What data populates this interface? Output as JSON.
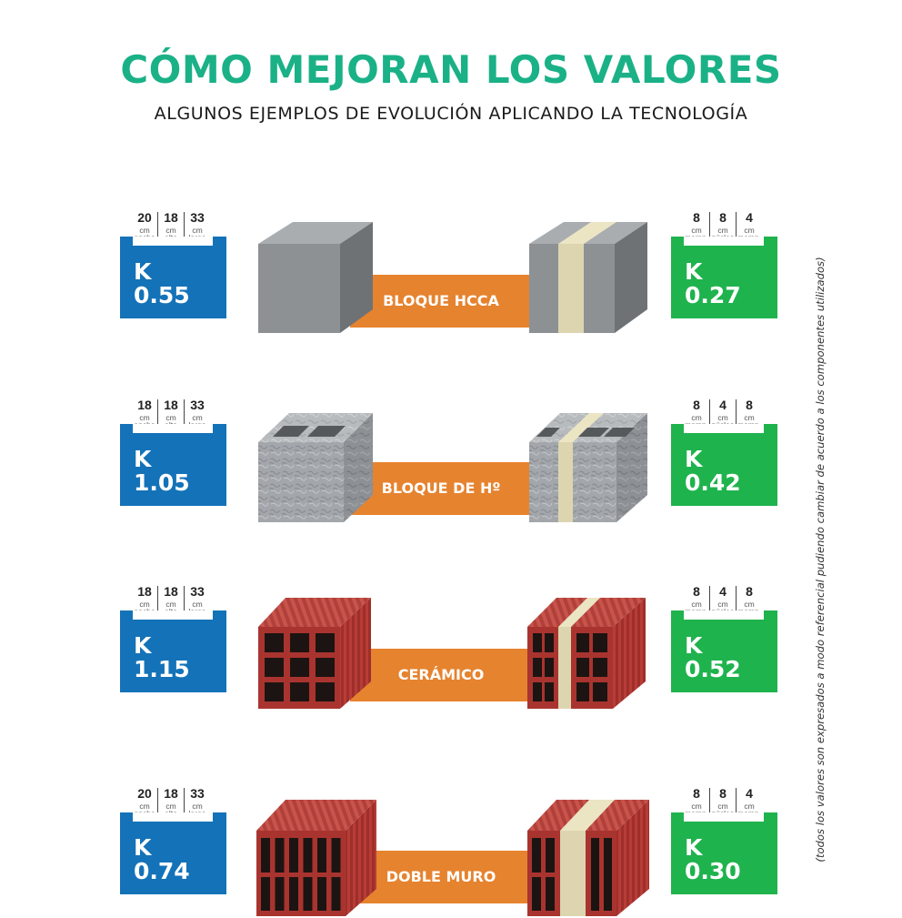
{
  "header": {
    "title": "CÓMO MEJORAN LOS VALORES",
    "subtitle": "ALGUNOS EJEMPLOS DE EVOLUCIÓN APLICANDO LA TECNOLOGÍA"
  },
  "side_note": "(todos los valores son expresados a modo referencial pudiendo cambiar de acuerdo a los componentes utilizados)",
  "colors": {
    "title": "#1bb187",
    "blue": "#1472b8",
    "green": "#1fb34d",
    "orange": "#e6832f",
    "core": "#dcd5b0"
  },
  "rows": [
    {
      "label": "BLOQUE HCCA",
      "left": {
        "dims": [
          {
            "n": "20",
            "u1": "cm",
            "u2": "ancho"
          },
          {
            "n": "18",
            "u1": "cm",
            "u2": "alto"
          },
          {
            "n": "33",
            "u1": "cm",
            "u2": "largo"
          }
        ],
        "k": "K",
        "value": "0.55"
      },
      "right": {
        "dims": [
          {
            "n": "8",
            "u1": "cm",
            "u2": "mamp."
          },
          {
            "n": "8",
            "u1": "cm",
            "u2": "núcleo"
          },
          {
            "n": "4",
            "u1": "cm",
            "u2": "mamp."
          }
        ],
        "k": "K",
        "value": "0.27"
      }
    },
    {
      "label": "BLOQUE DE Hº",
      "left": {
        "dims": [
          {
            "n": "18",
            "u1": "cm",
            "u2": "ancho"
          },
          {
            "n": "18",
            "u1": "cm",
            "u2": "alto"
          },
          {
            "n": "33",
            "u1": "cm",
            "u2": "largo"
          }
        ],
        "k": "K",
        "value": "1.05"
      },
      "right": {
        "dims": [
          {
            "n": "8",
            "u1": "cm",
            "u2": "mamp."
          },
          {
            "n": "4",
            "u1": "cm",
            "u2": "núcleo"
          },
          {
            "n": "8",
            "u1": "cm",
            "u2": "mamp."
          }
        ],
        "k": "K",
        "value": "0.42"
      }
    },
    {
      "label": "CERÁMICO",
      "left": {
        "dims": [
          {
            "n": "18",
            "u1": "cm",
            "u2": "ancho"
          },
          {
            "n": "18",
            "u1": "cm",
            "u2": "alto"
          },
          {
            "n": "33",
            "u1": "cm",
            "u2": "largo"
          }
        ],
        "k": "K",
        "value": "1.15"
      },
      "right": {
        "dims": [
          {
            "n": "8",
            "u1": "cm",
            "u2": "mamp."
          },
          {
            "n": "4",
            "u1": "cm",
            "u2": "núcleo"
          },
          {
            "n": "8",
            "u1": "cm",
            "u2": "mamp."
          }
        ],
        "k": "K",
        "value": "0.52"
      }
    },
    {
      "label": "DOBLE MURO",
      "left": {
        "dims": [
          {
            "n": "20",
            "u1": "cm",
            "u2": "ancho"
          },
          {
            "n": "18",
            "u1": "cm",
            "u2": "alto"
          },
          {
            "n": "33",
            "u1": "cm",
            "u2": "largo"
          }
        ],
        "k": "K",
        "value": "0.74"
      },
      "right": {
        "dims": [
          {
            "n": "8",
            "u1": "cm",
            "u2": "mamp."
          },
          {
            "n": "8",
            "u1": "cm",
            "u2": "núcleo"
          },
          {
            "n": "4",
            "u1": "cm",
            "u2": "mamp."
          }
        ],
        "k": "K",
        "value": "0.30"
      }
    }
  ]
}
